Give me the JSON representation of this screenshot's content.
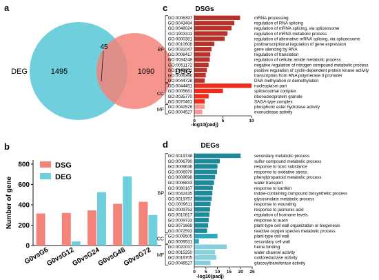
{
  "panels": {
    "a": "a",
    "b": "b",
    "c": "c",
    "d": "d"
  },
  "colors": {
    "venn_deg": "#6fcfdc",
    "venn_dsg": "#f4837a",
    "bar_dsg": "#f4837a",
    "bar_deg": "#6fcfdc",
    "dsg_bp": "#b8322a",
    "dsg_cc": "#f02a1c",
    "dsg_mf": "#f59a8f",
    "deg_bp": "#1d8a9b",
    "deg_cc": "#2ba8bd",
    "deg_mf": "#86d0dd"
  },
  "chart_data": [
    {
      "type": "venn",
      "sets": [
        {
          "name": "DEG",
          "only": 1495
        },
        {
          "name": "DSG",
          "only": 1090
        }
      ],
      "intersection": 45
    },
    {
      "type": "bar",
      "ylabel": "Number of gene",
      "ylim": [
        0,
        800
      ],
      "yticks": [
        0,
        200,
        400,
        600,
        800
      ],
      "categories": [
        "G0vsG6",
        "G0vsG12",
        "G0vsG24",
        "G0vsG48",
        "G0vsG72"
      ],
      "series": [
        {
          "name": "DSG",
          "values": [
            315,
            320,
            345,
            410,
            430
          ]
        },
        {
          "name": "DEG",
          "values": [
            0,
            40,
            525,
            680,
            300
          ]
        }
      ],
      "legend": "top-left",
      "grid": false
    },
    {
      "type": "bar",
      "orientation": "horizontal",
      "title": "DSGs",
      "xlabel": "-log10(padj)",
      "xlim": [
        0,
        10
      ],
      "xticks": [
        0,
        5,
        10
      ],
      "groups": [
        "BP",
        "CC",
        "MF"
      ],
      "rows": [
        {
          "id": "GO:0006397",
          "term": "mRNA processing",
          "group": "BP",
          "value": 8.0
        },
        {
          "id": "GO:0043484",
          "term": "regulation of RNA splicing",
          "group": "BP",
          "value": 7.0
        },
        {
          "id": "GO:0048024",
          "term": "regulation of mRNA splicing, via spliceosome",
          "group": "BP",
          "value": 6.5
        },
        {
          "id": "GO:1903311",
          "term": "regulation of mRNA metabolic process",
          "group": "BP",
          "value": 5.8
        },
        {
          "id": "GO:0000381",
          "term": "regulation of alternative mRNA splicing, via spliceosome",
          "group": "BP",
          "value": 5.3
        },
        {
          "id": "GO:0010608",
          "term": "posttranscriptional regulation of gene expression",
          "group": "BP",
          "value": 3.5
        },
        {
          "id": "GO:0031047",
          "term": "gene silencing by RNA",
          "group": "BP",
          "value": 3.0
        },
        {
          "id": "GO:0006417",
          "term": "regulation of translation",
          "group": "BP",
          "value": 2.8
        },
        {
          "id": "GO:0034248",
          "term": "regulation of cellular amide metabolic process",
          "group": "BP",
          "value": 2.7
        },
        {
          "id": "GO:0051172",
          "term": "negative regulation of nitrogen compound metabolic process",
          "group": "BP",
          "value": 2.5
        },
        {
          "id": "GO:1904031",
          "term": "positive regulation of cyclin-dependent protein kinase activity",
          "group": "BP",
          "value": 2.2
        },
        {
          "id": "GO:0006366",
          "term": "transcription from RNA polymerase II promoter",
          "group": "BP",
          "value": 2.0
        },
        {
          "id": "GO:0044728",
          "term": "DNA methylation or demethylation",
          "group": "BP",
          "value": 1.8
        },
        {
          "id": "GO:0044451",
          "term": "nucleoplasm part",
          "group": "CC",
          "value": 10.0
        },
        {
          "id": "GO:0005681",
          "term": "spliceosomal complex",
          "group": "CC",
          "value": 5.0
        },
        {
          "id": "GO:0035770",
          "term": "ribonucleoprotein granule",
          "group": "CC",
          "value": 2.5
        },
        {
          "id": "GO:0070461",
          "term": "SAGA-type complex",
          "group": "CC",
          "value": 1.8
        },
        {
          "id": "GO:0042578",
          "term": "phosphoric ester hydrolase activity",
          "group": "MF",
          "value": 1.8
        },
        {
          "id": "GO:0004527",
          "term": "exonuclease activity",
          "group": "MF",
          "value": 1.4
        }
      ]
    },
    {
      "type": "bar",
      "orientation": "horizontal",
      "title": "DEGs",
      "xlabel": "-log10(padj)",
      "xlim": [
        0,
        25
      ],
      "xticks": [
        0,
        5,
        10,
        15,
        20,
        25
      ],
      "groups": [
        "BP",
        "CC",
        "MF"
      ],
      "rows": [
        {
          "id": "GO:0019748",
          "term": "secondary metabolic process",
          "group": "BP",
          "value": 20.0
        },
        {
          "id": "GO:0006790",
          "term": "sulfur compound metabolic process",
          "group": "BP",
          "value": 11.0
        },
        {
          "id": "GO:0009636",
          "term": "response to toxic substance",
          "group": "BP",
          "value": 10.0
        },
        {
          "id": "GO:0006979",
          "term": "response to oxidative stress",
          "group": "BP",
          "value": 9.8
        },
        {
          "id": "GO:0009698",
          "term": "phenylpropanoid metabolic process",
          "group": "BP",
          "value": 9.0
        },
        {
          "id": "GO:0006833",
          "term": "water transport",
          "group": "BP",
          "value": 8.5
        },
        {
          "id": "GO:0080167",
          "term": "response to karrikin",
          "group": "BP",
          "value": 8.0
        },
        {
          "id": "GO:0042435",
          "term": "indole-containing compound biosynthetic process",
          "group": "BP",
          "value": 7.8
        },
        {
          "id": "GO:0019757",
          "term": "glycosinolate metabolic process",
          "group": "BP",
          "value": 7.5
        },
        {
          "id": "GO:0009611",
          "term": "response to wounding",
          "group": "BP",
          "value": 7.0
        },
        {
          "id": "GO:0009753",
          "term": "response to jasmonic acid",
          "group": "BP",
          "value": 6.8
        },
        {
          "id": "GO:0010817",
          "term": "regulation of hormone levels",
          "group": "BP",
          "value": 6.5
        },
        {
          "id": "GO:0009733",
          "term": "response to auxin",
          "group": "BP",
          "value": 6.2
        },
        {
          "id": "GO:0071669",
          "term": "plant-type cell wall organization or biogenesis",
          "group": "BP",
          "value": 6.0
        },
        {
          "id": "GO:0072593",
          "term": "reactive oxygen species metabolic process",
          "group": "BP",
          "value": 5.5
        },
        {
          "id": "GO:0009505",
          "term": "plant-type cell wall",
          "group": "CC",
          "value": 10.0
        },
        {
          "id": "GO:0009531",
          "term": "secondary cell wall",
          "group": "CC",
          "value": 2.0
        },
        {
          "id": "GO:0020037",
          "term": "heme binding",
          "group": "MF",
          "value": 14.0
        },
        {
          "id": "GO:0015250",
          "term": "water channel activity",
          "group": "MF",
          "value": 9.0
        },
        {
          "id": "GO:0016705",
          "term": "oxidoreductase activity",
          "group": "MF",
          "value": 9.5
        },
        {
          "id": "GO:0046527",
          "term": "glucosyltransferase activity",
          "group": "MF",
          "value": 7.0
        }
      ]
    }
  ]
}
